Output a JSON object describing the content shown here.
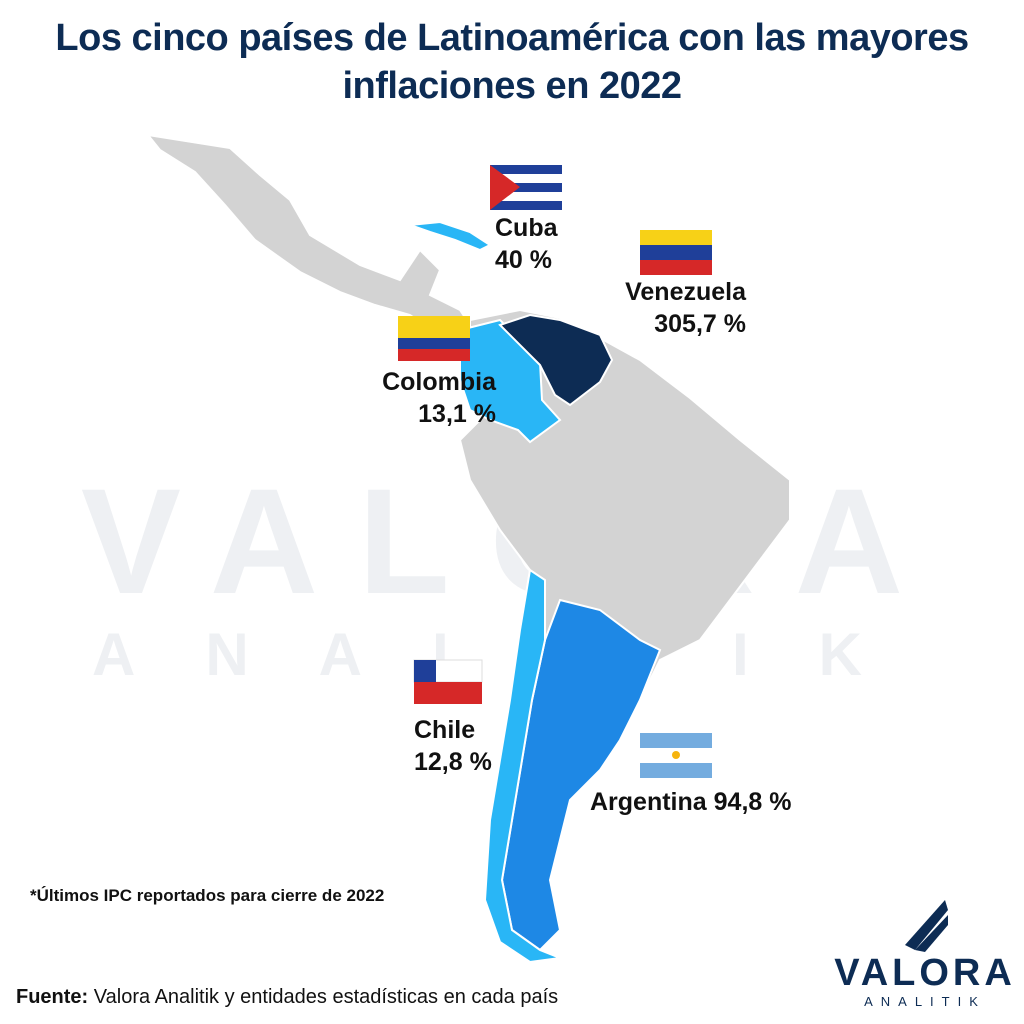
{
  "title": "Los cinco países de Latinoamérica con las mayores inflaciones en 2022",
  "countries": [
    {
      "name": "Cuba",
      "label": "40 %"
    },
    {
      "name": "Venezuela",
      "label": "305,7 %"
    },
    {
      "name": "Colombia",
      "label": "13,1 %"
    },
    {
      "name": "Chile",
      "label": "12,8 %"
    },
    {
      "name": "Argentina",
      "label": "94,8 %"
    }
  ],
  "watermark": {
    "brand": "VALORA",
    "sub": "ANALITIK"
  },
  "footnote": "*Últimos IPC reportados para cierre de 2022",
  "source": {
    "label": "Fuente:",
    "text": "Valora Analitik y entidades estadísticas en cada país"
  },
  "logo": {
    "brand": "VALORA",
    "sub": "ANALITIK"
  }
}
